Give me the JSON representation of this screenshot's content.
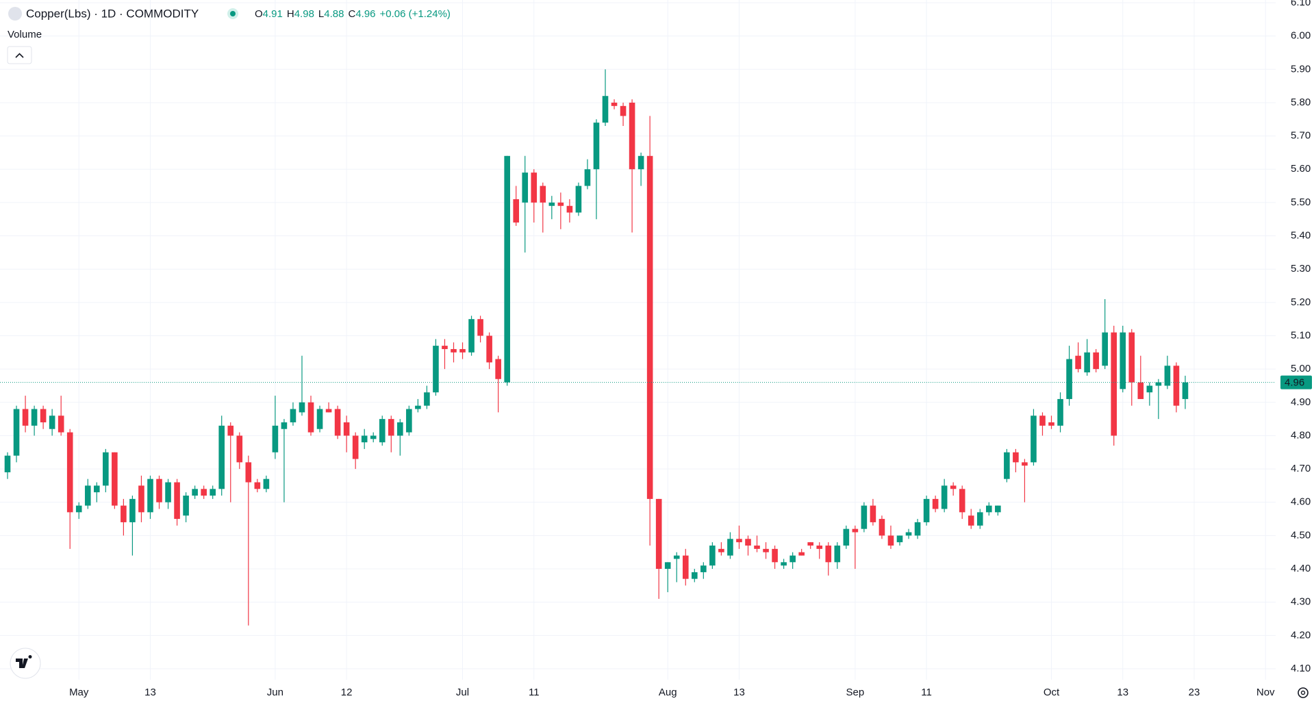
{
  "header": {
    "symbol": "Copper(Lbs) · 1D · COMMODITY",
    "ohlc": [
      {
        "label": "O",
        "value": "4.91"
      },
      {
        "label": "H",
        "value": "4.98"
      },
      {
        "label": "L",
        "value": "4.88"
      },
      {
        "label": "C",
        "value": "4.96"
      }
    ],
    "change": "+0.06 (+1.24%)",
    "volume_label": "Volume"
  },
  "chart_data": {
    "type": "candlestick",
    "up_color": "#089981",
    "down_color": "#f23645",
    "grid": true,
    "ylim": [
      4.1,
      6.1
    ],
    "yticks": [
      {
        "value": 4.1,
        "label": "4.10"
      },
      {
        "value": 4.2,
        "label": "4.20"
      },
      {
        "value": 4.3,
        "label": "4.30"
      },
      {
        "value": 4.4,
        "label": "4.40"
      },
      {
        "value": 4.5,
        "label": "4.50"
      },
      {
        "value": 4.6,
        "label": "4.60"
      },
      {
        "value": 4.7,
        "label": "4.70"
      },
      {
        "value": 4.8,
        "label": "4.80"
      },
      {
        "value": 4.9,
        "label": "4.90"
      },
      {
        "value": 5.0,
        "label": "5.00"
      },
      {
        "value": 5.1,
        "label": "5.10"
      },
      {
        "value": 5.2,
        "label": "5.20"
      },
      {
        "value": 5.3,
        "label": "5.30"
      },
      {
        "value": 5.4,
        "label": "5.40"
      },
      {
        "value": 5.5,
        "label": "5.50"
      },
      {
        "value": 5.6,
        "label": "5.60"
      },
      {
        "value": 5.7,
        "label": "5.70"
      },
      {
        "value": 5.8,
        "label": "5.80"
      },
      {
        "value": 5.9,
        "label": "5.90"
      },
      {
        "value": 6.0,
        "label": "6.00"
      },
      {
        "value": 6.1,
        "label": "6.10"
      }
    ],
    "last_price": {
      "value": 4.96,
      "label": "4.96"
    },
    "categories": [
      null,
      null,
      null,
      null,
      null,
      null,
      null,
      null,
      "May",
      null,
      null,
      null,
      null,
      null,
      null,
      null,
      "13",
      null,
      null,
      null,
      null,
      null,
      null,
      null,
      null,
      null,
      null,
      null,
      null,
      null,
      "Jun",
      null,
      null,
      null,
      null,
      null,
      null,
      null,
      "12",
      null,
      null,
      null,
      null,
      null,
      null,
      null,
      null,
      null,
      null,
      null,
      null,
      "Jul",
      null,
      null,
      null,
      null,
      null,
      null,
      null,
      "11",
      null,
      null,
      null,
      null,
      null,
      null,
      null,
      null,
      null,
      null,
      null,
      null,
      null,
      null,
      "Aug",
      null,
      null,
      null,
      null,
      null,
      null,
      null,
      "13",
      null,
      null,
      null,
      null,
      null,
      null,
      null,
      null,
      null,
      null,
      null,
      null,
      "Sep",
      null,
      null,
      null,
      null,
      null,
      null,
      null,
      "11",
      null,
      null,
      null,
      null,
      null,
      null,
      null,
      null,
      null,
      null,
      null,
      null,
      null,
      "Oct",
      null,
      null,
      null,
      null,
      null,
      null,
      null,
      "13",
      null,
      null,
      null,
      null,
      null,
      null,
      null,
      "23",
      null,
      null,
      null,
      null,
      null,
      null,
      null,
      "Nov"
    ],
    "candles": [
      [
        4.69,
        4.75,
        4.67,
        4.74
      ],
      [
        4.74,
        4.89,
        4.72,
        4.88
      ],
      [
        4.88,
        4.92,
        4.81,
        4.83
      ],
      [
        4.83,
        4.89,
        4.8,
        4.88
      ],
      [
        4.88,
        4.89,
        4.82,
        4.84
      ],
      [
        4.82,
        4.88,
        4.8,
        4.86
      ],
      [
        4.86,
        4.92,
        4.8,
        4.81
      ],
      [
        4.81,
        4.82,
        4.46,
        4.57
      ],
      [
        4.57,
        4.6,
        4.55,
        4.59
      ],
      [
        4.59,
        4.67,
        4.58,
        4.65
      ],
      [
        4.63,
        4.66,
        4.6,
        4.65
      ],
      [
        4.65,
        4.76,
        4.63,
        4.75
      ],
      [
        4.75,
        4.75,
        4.58,
        4.59
      ],
      [
        4.59,
        4.61,
        4.5,
        4.54
      ],
      [
        4.54,
        4.62,
        4.44,
        4.61
      ],
      [
        4.65,
        4.68,
        4.54,
        4.57
      ],
      [
        4.57,
        4.68,
        4.55,
        4.67
      ],
      [
        4.67,
        4.68,
        4.58,
        4.6
      ],
      [
        4.6,
        4.67,
        4.58,
        4.66
      ],
      [
        4.66,
        4.67,
        4.53,
        4.55
      ],
      [
        4.56,
        4.63,
        4.54,
        4.62
      ],
      [
        4.62,
        4.65,
        4.61,
        4.64
      ],
      [
        4.64,
        4.65,
        4.61,
        4.62
      ],
      [
        4.62,
        4.65,
        4.61,
        4.64
      ],
      [
        4.64,
        4.86,
        4.62,
        4.83
      ],
      [
        4.83,
        4.84,
        4.6,
        4.8
      ],
      [
        4.8,
        4.81,
        4.7,
        4.72
      ],
      [
        4.72,
        4.74,
        4.23,
        4.66
      ],
      [
        4.66,
        4.67,
        4.63,
        4.64
      ],
      [
        4.64,
        4.68,
        4.63,
        4.67
      ],
      [
        4.75,
        4.92,
        4.73,
        4.83
      ],
      [
        4.82,
        4.85,
        4.6,
        4.84
      ],
      [
        4.84,
        4.9,
        4.83,
        4.88
      ],
      [
        4.87,
        5.04,
        4.86,
        4.9
      ],
      [
        4.9,
        4.92,
        4.8,
        4.81
      ],
      [
        4.82,
        4.89,
        4.81,
        4.88
      ],
      [
        4.88,
        4.9,
        4.87,
        4.87
      ],
      [
        4.88,
        4.89,
        4.79,
        4.8
      ],
      [
        4.84,
        4.86,
        4.75,
        4.8
      ],
      [
        4.8,
        4.81,
        4.7,
        4.73
      ],
      [
        4.78,
        4.82,
        4.76,
        4.8
      ],
      [
        4.79,
        4.81,
        4.78,
        4.8
      ],
      [
        4.78,
        4.86,
        4.77,
        4.85
      ],
      [
        4.85,
        4.86,
        4.75,
        4.8
      ],
      [
        4.8,
        4.85,
        4.74,
        4.84
      ],
      [
        4.81,
        4.89,
        4.8,
        4.88
      ],
      [
        4.88,
        4.91,
        4.87,
        4.89
      ],
      [
        4.89,
        4.95,
        4.88,
        4.93
      ],
      [
        4.93,
        5.09,
        4.92,
        5.07
      ],
      [
        5.07,
        5.09,
        5.0,
        5.06
      ],
      [
        5.06,
        5.08,
        5.02,
        5.05
      ],
      [
        5.06,
        5.08,
        5.03,
        5.05
      ],
      [
        5.05,
        5.16,
        5.04,
        5.15
      ],
      [
        5.15,
        5.16,
        5.08,
        5.1
      ],
      [
        5.1,
        5.11,
        5.0,
        5.02
      ],
      [
        5.03,
        5.04,
        4.87,
        4.97
      ],
      [
        4.96,
        5.64,
        4.95,
        5.64
      ],
      [
        5.51,
        5.55,
        5.43,
        5.44
      ],
      [
        5.5,
        5.64,
        5.35,
        5.59
      ],
      [
        5.59,
        5.6,
        5.44,
        5.5
      ],
      [
        5.55,
        5.56,
        5.41,
        5.5
      ],
      [
        5.49,
        5.52,
        5.45,
        5.5
      ],
      [
        5.5,
        5.53,
        5.42,
        5.49
      ],
      [
        5.49,
        5.51,
        5.44,
        5.47
      ],
      [
        5.47,
        5.56,
        5.46,
        5.55
      ],
      [
        5.55,
        5.63,
        5.54,
        5.6
      ],
      [
        5.6,
        5.75,
        5.45,
        5.74
      ],
      [
        5.74,
        5.9,
        5.73,
        5.82
      ],
      [
        5.8,
        5.81,
        5.78,
        5.79
      ],
      [
        5.79,
        5.8,
        5.73,
        5.76
      ],
      [
        5.8,
        5.81,
        5.41,
        5.6
      ],
      [
        5.6,
        5.65,
        5.55,
        5.64
      ],
      [
        5.64,
        5.76,
        4.47,
        4.61
      ],
      [
        4.61,
        4.61,
        4.31,
        4.4
      ],
      [
        4.4,
        4.42,
        4.33,
        4.42
      ],
      [
        4.43,
        4.45,
        4.36,
        4.44
      ],
      [
        4.44,
        4.46,
        4.35,
        4.37
      ],
      [
        4.37,
        4.4,
        4.36,
        4.39
      ],
      [
        4.39,
        4.42,
        4.37,
        4.41
      ],
      [
        4.41,
        4.48,
        4.4,
        4.47
      ],
      [
        4.46,
        4.48,
        4.44,
        4.45
      ],
      [
        4.44,
        4.51,
        4.43,
        4.49
      ],
      [
        4.49,
        4.53,
        4.46,
        4.48
      ],
      [
        4.49,
        4.5,
        4.44,
        4.47
      ],
      [
        4.47,
        4.5,
        4.45,
        4.46
      ],
      [
        4.46,
        4.48,
        4.43,
        4.45
      ],
      [
        4.46,
        4.47,
        4.4,
        4.42
      ],
      [
        4.41,
        4.43,
        4.4,
        4.42
      ],
      [
        4.42,
        4.45,
        4.4,
        4.44
      ],
      [
        4.45,
        4.46,
        4.44,
        4.44
      ],
      [
        4.48,
        4.48,
        4.46,
        4.47
      ],
      [
        4.47,
        4.48,
        4.43,
        4.46
      ],
      [
        4.47,
        4.48,
        4.38,
        4.42
      ],
      [
        4.42,
        4.48,
        4.4,
        4.47
      ],
      [
        4.47,
        4.53,
        4.46,
        4.52
      ],
      [
        4.52,
        4.53,
        4.4,
        4.51
      ],
      [
        4.52,
        4.6,
        4.51,
        4.59
      ],
      [
        4.59,
        4.61,
        4.53,
        4.54
      ],
      [
        4.55,
        4.56,
        4.49,
        4.5
      ],
      [
        4.5,
        4.53,
        4.46,
        4.47
      ],
      [
        4.48,
        4.5,
        4.47,
        4.5
      ],
      [
        4.5,
        4.52,
        4.49,
        4.51
      ],
      [
        4.5,
        4.55,
        4.49,
        4.54
      ],
      [
        4.54,
        4.62,
        4.53,
        4.61
      ],
      [
        4.61,
        4.62,
        4.57,
        4.58
      ],
      [
        4.58,
        4.67,
        4.57,
        4.65
      ],
      [
        4.65,
        4.66,
        4.62,
        4.64
      ],
      [
        4.64,
        4.65,
        4.55,
        4.57
      ],
      [
        4.56,
        4.58,
        4.52,
        4.53
      ],
      [
        4.53,
        4.58,
        4.52,
        4.57
      ],
      [
        4.57,
        4.6,
        4.56,
        4.59
      ],
      [
        4.57,
        4.59,
        4.56,
        4.59
      ],
      [
        4.67,
        4.76,
        4.66,
        4.75
      ],
      [
        4.75,
        4.76,
        4.69,
        4.72
      ],
      [
        4.72,
        4.73,
        4.6,
        4.71
      ],
      [
        4.72,
        4.88,
        4.71,
        4.86
      ],
      [
        4.86,
        4.87,
        4.8,
        4.83
      ],
      [
        4.84,
        4.86,
        4.82,
        4.83
      ],
      [
        4.83,
        4.93,
        4.81,
        4.91
      ],
      [
        4.91,
        5.07,
        4.89,
        5.03
      ],
      [
        5.04,
        5.08,
        4.99,
        5.0
      ],
      [
        4.99,
        5.09,
        4.98,
        5.05
      ],
      [
        5.05,
        5.06,
        4.99,
        5.0
      ],
      [
        5.01,
        5.21,
        5.0,
        5.11
      ],
      [
        5.11,
        5.13,
        4.77,
        4.8
      ],
      [
        4.94,
        5.13,
        4.93,
        5.11
      ],
      [
        5.11,
        5.12,
        4.89,
        4.96
      ],
      [
        4.96,
        5.04,
        4.91,
        4.91
      ],
      [
        4.93,
        4.96,
        4.89,
        4.95
      ],
      [
        4.95,
        4.97,
        4.85,
        4.96
      ],
      [
        4.95,
        5.04,
        4.94,
        5.01
      ],
      [
        5.01,
        5.02,
        4.87,
        4.89
      ],
      [
        4.91,
        4.98,
        4.88,
        4.96
      ],
      null,
      null,
      null,
      null,
      null,
      null,
      null,
      null,
      null
    ]
  }
}
